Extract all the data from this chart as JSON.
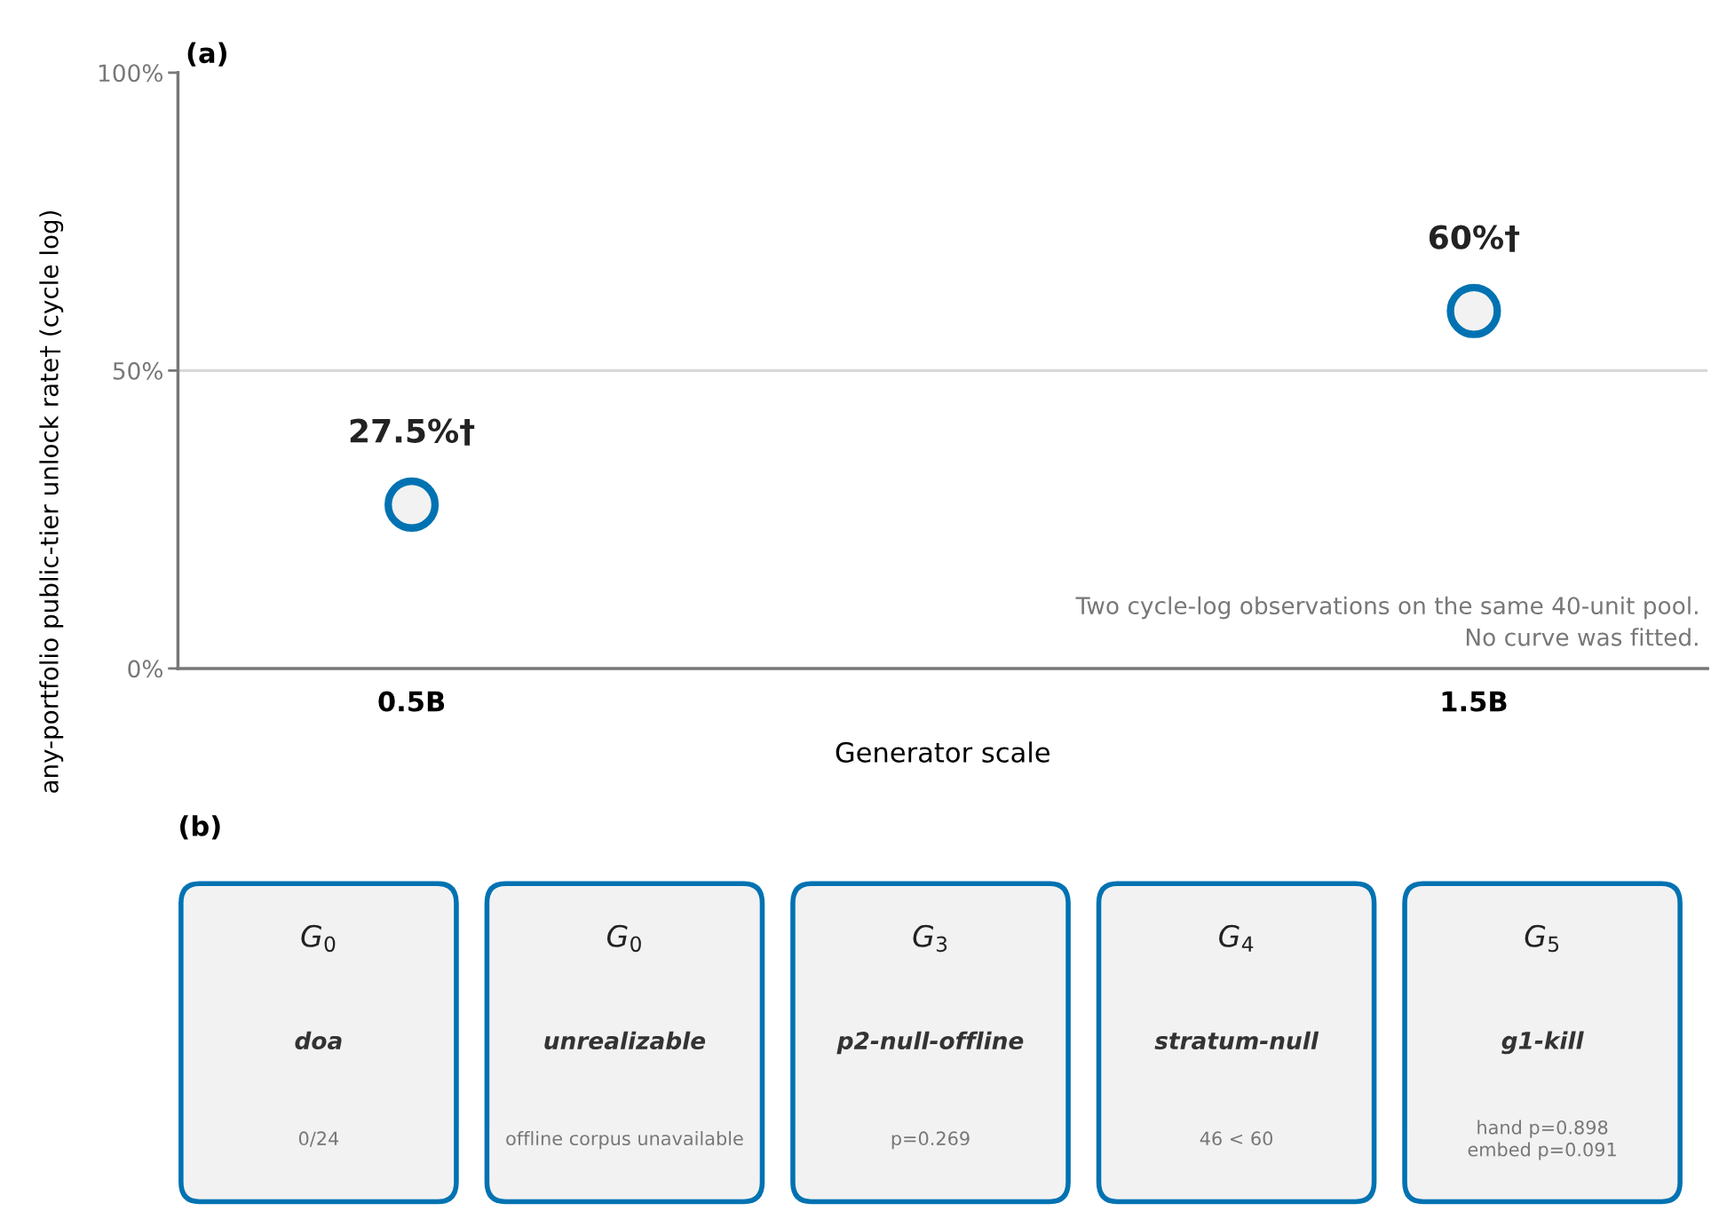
{
  "chart_data": [
    {
      "type": "scatter",
      "title": "(a)",
      "xlabel": "Generator scale",
      "ylabel": "any-portfolio public-tier unlock rate† (cycle log)",
      "categories": [
        "0.5B",
        "1.5B"
      ],
      "series": [
        {
          "color": "#0072b2",
          "values": [
            27.5,
            60
          ],
          "value_labels": [
            "27.5%†",
            "60%†"
          ]
        }
      ],
      "marker": "circle",
      "ylim": [
        0,
        100
      ],
      "yticks": [
        {
          "value": 0,
          "label": "0%"
        },
        {
          "value": 50,
          "label": "50%"
        },
        {
          "value": 100,
          "label": "100%"
        }
      ],
      "ref_lines": [
        {
          "axis": "y",
          "value": 50,
          "color": "#d9d9d9"
        }
      ],
      "annotations": [
        "Two cycle-log observations on the same 40-unit pool.\nNo curve was fitted."
      ]
    },
    {
      "type": "other",
      "title": "(b)",
      "categories": [
        "doa",
        "unrealizable",
        "p2-null-offline",
        "stratum-null",
        "g1-kill"
      ],
      "annotations": [
        "G$_{0}$",
        "G$_{0}$",
        "G$_{3}$",
        "G$_{4}$",
        "G$_{5}$",
        "0/24",
        "offline corpus unavailable",
        "p=0.269",
        "46 < 60",
        "hand p=0.898\nembed p=0.091"
      ]
    }
  ]
}
